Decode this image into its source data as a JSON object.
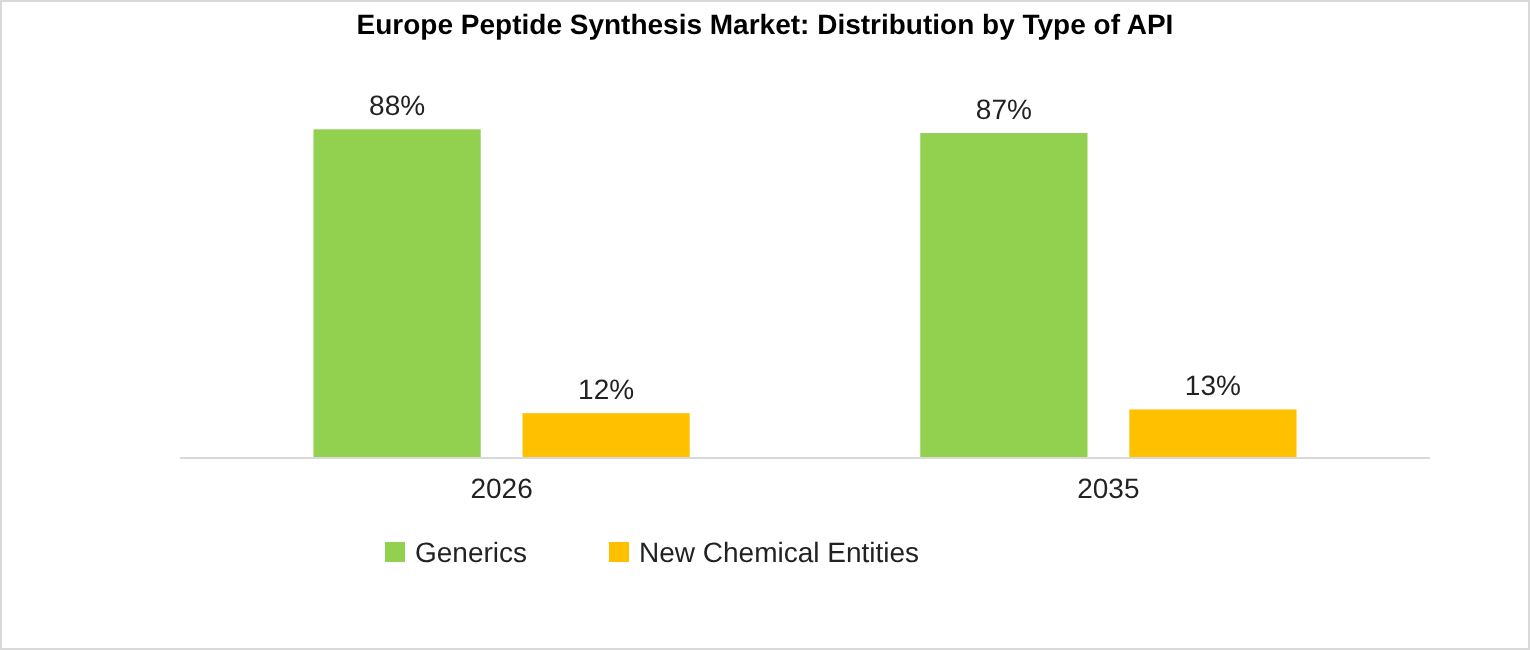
{
  "chart_data": {
    "type": "bar",
    "title": "Europe Peptide Synthesis Market: Distribution by Type of API",
    "categories": [
      "2026",
      "2035"
    ],
    "series": [
      {
        "name": "Generics",
        "color": "#92d050",
        "values": [
          88,
          87
        ],
        "value_labels": [
          "88%",
          "87%"
        ]
      },
      {
        "name": "New Chemical Entities",
        "color": "#ffc000",
        "values": [
          12,
          13
        ],
        "value_labels": [
          "12%",
          "13%"
        ]
      }
    ],
    "legend": "bottom"
  }
}
